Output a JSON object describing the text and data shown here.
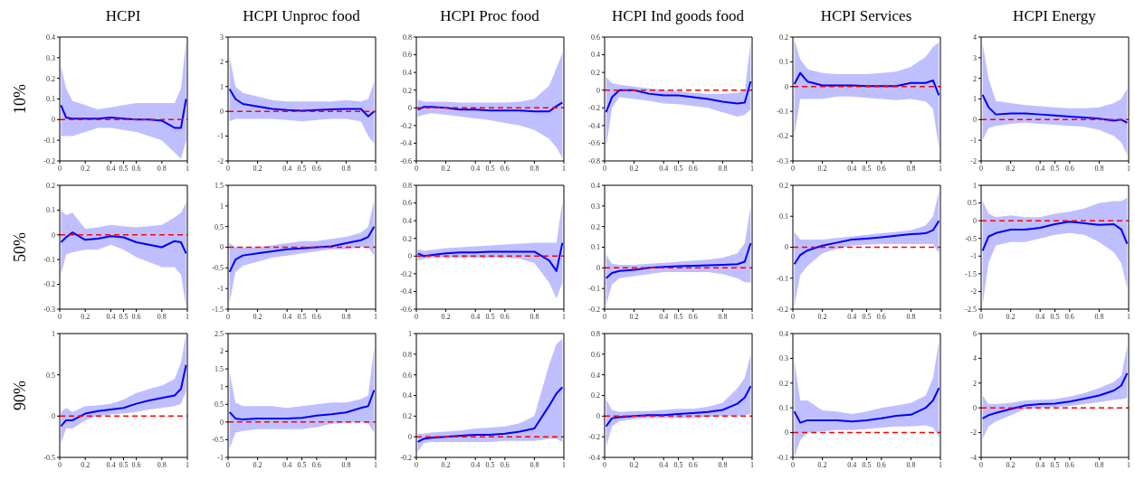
{
  "chart_data": [
    {
      "type": "line",
      "title": "HCPI",
      "ylabel": "10%",
      "x": [
        0.01,
        0.05,
        0.1,
        0.2,
        0.3,
        0.4,
        0.5,
        0.6,
        0.7,
        0.8,
        0.9,
        0.95,
        0.99
      ],
      "xlim": [
        0,
        1
      ],
      "xticks": [
        0,
        0.2,
        0.4,
        0.5,
        0.6,
        0.8,
        1
      ],
      "ylim": [
        -0.2,
        0.4
      ],
      "yticks": [
        -0.2,
        -0.1,
        0,
        0.1,
        0.2,
        0.3,
        0.4
      ],
      "grid": false,
      "legend": false,
      "line_style": "solid",
      "ref_lines": [
        {
          "axis": "y",
          "value": 0,
          "color": "#ff0000",
          "line_style": "dashed"
        }
      ],
      "series": [
        {
          "color": "#0000ff",
          "values": [
            0.07,
            0.01,
            0.005,
            0.005,
            0.005,
            0.01,
            0.005,
            0,
            0,
            -0.005,
            -0.04,
            -0.04,
            0.1
          ],
          "upper": [
            0.26,
            0.15,
            0.09,
            0.07,
            0.05,
            0.06,
            0.07,
            0.08,
            0.08,
            0.08,
            0.08,
            0.15,
            0.38
          ],
          "lower": [
            -0.08,
            -0.08,
            -0.08,
            -0.06,
            -0.04,
            -0.04,
            -0.05,
            -0.06,
            -0.08,
            -0.1,
            -0.16,
            -0.19,
            -0.1
          ]
        }
      ]
    },
    {
      "type": "line",
      "title": "HCPI Unproc food",
      "x": [
        0.01,
        0.05,
        0.1,
        0.2,
        0.3,
        0.4,
        0.5,
        0.6,
        0.7,
        0.8,
        0.9,
        0.95,
        0.99
      ],
      "xlim": [
        0,
        1
      ],
      "xticks": [
        0,
        0.2,
        0.4,
        0.5,
        0.6,
        0.8,
        1
      ],
      "ylim": [
        -2,
        3
      ],
      "yticks": [
        -2,
        -1,
        0,
        1,
        2,
        3
      ],
      "grid": false,
      "legend": false,
      "line_style": "solid",
      "ref_lines": [
        {
          "axis": "y",
          "value": 0,
          "color": "#ff0000",
          "line_style": "dashed"
        }
      ],
      "series": [
        {
          "color": "#0000ff",
          "values": [
            0.9,
            0.5,
            0.3,
            0.2,
            0.1,
            0.05,
            0.03,
            0.05,
            0.08,
            0.1,
            0.1,
            -0.2,
            0
          ],
          "upper": [
            2.2,
            1,
            0.75,
            0.6,
            0.45,
            0.4,
            0.4,
            0.4,
            0.4,
            0.45,
            0.4,
            0.5,
            1.2
          ],
          "lower": [
            -0.4,
            -0.3,
            -0.3,
            -0.3,
            -0.3,
            -0.35,
            -0.4,
            -0.35,
            -0.3,
            -0.3,
            -0.4,
            -1,
            -1.3
          ]
        }
      ]
    },
    {
      "type": "line",
      "title": "HCPI Proc food",
      "x": [
        0.01,
        0.05,
        0.1,
        0.2,
        0.3,
        0.4,
        0.5,
        0.6,
        0.7,
        0.8,
        0.9,
        0.95,
        0.99
      ],
      "xlim": [
        0,
        1
      ],
      "xticks": [
        0,
        0.2,
        0.4,
        0.5,
        0.6,
        0.8,
        1
      ],
      "ylim": [
        -0.6,
        0.8
      ],
      "yticks": [
        -0.6,
        -0.4,
        -0.2,
        0,
        0.2,
        0.4,
        0.6,
        0.8
      ],
      "grid": false,
      "legend": false,
      "line_style": "solid",
      "ref_lines": [
        {
          "axis": "y",
          "value": 0,
          "color": "#ff0000",
          "line_style": "dashed"
        }
      ],
      "series": [
        {
          "color": "#0000ff",
          "values": [
            -0.02,
            0.01,
            0.01,
            0,
            -0.02,
            -0.02,
            -0.03,
            -0.03,
            -0.03,
            -0.04,
            -0.04,
            0.02,
            0.06
          ],
          "upper": [
            0.09,
            0.07,
            0.07,
            0.07,
            0.06,
            0.06,
            0.06,
            0.06,
            0.07,
            0.1,
            0.25,
            0.45,
            0.62
          ],
          "lower": [
            -0.1,
            -0.08,
            -0.06,
            -0.08,
            -0.1,
            -0.12,
            -0.14,
            -0.17,
            -0.2,
            -0.25,
            -0.35,
            -0.45,
            -0.57
          ]
        }
      ]
    },
    {
      "type": "line",
      "title": "HCPI Ind goods food",
      "x": [
        0.01,
        0.05,
        0.1,
        0.2,
        0.3,
        0.4,
        0.5,
        0.6,
        0.7,
        0.8,
        0.9,
        0.95,
        0.99
      ],
      "xlim": [
        0,
        1
      ],
      "xticks": [
        0,
        0.2,
        0.4,
        0.5,
        0.6,
        0.8,
        1
      ],
      "ylim": [
        -0.8,
        0.6
      ],
      "yticks": [
        -0.8,
        -0.6,
        -0.4,
        -0.2,
        0,
        0.2,
        0.4,
        0.6
      ],
      "grid": false,
      "legend": false,
      "line_style": "solid",
      "ref_lines": [
        {
          "axis": "y",
          "value": 0,
          "color": "#ff0000",
          "line_style": "dashed"
        }
      ],
      "series": [
        {
          "color": "#0000ff",
          "values": [
            -0.25,
            -0.08,
            0,
            0,
            -0.04,
            -0.06,
            -0.06,
            -0.08,
            -0.1,
            -0.13,
            -0.15,
            -0.14,
            0.1
          ],
          "upper": [
            0.15,
            0.08,
            0.06,
            0.04,
            0.02,
            0,
            -0.01,
            -0.03,
            -0.04,
            -0.04,
            -0.03,
            0,
            0.55
          ],
          "lower": [
            -0.65,
            -0.2,
            -0.08,
            -0.1,
            -0.12,
            -0.15,
            -0.16,
            -0.18,
            -0.2,
            -0.25,
            -0.3,
            -0.28,
            -0.22
          ]
        }
      ]
    },
    {
      "type": "line",
      "title": "HCPI Services",
      "x": [
        0.01,
        0.05,
        0.1,
        0.2,
        0.3,
        0.4,
        0.5,
        0.6,
        0.7,
        0.8,
        0.9,
        0.95,
        0.99
      ],
      "xlim": [
        0,
        1
      ],
      "xticks": [
        0,
        0.2,
        0.4,
        0.5,
        0.6,
        0.8,
        1
      ],
      "ylim": [
        -0.3,
        0.2
      ],
      "yticks": [
        -0.3,
        -0.2,
        -0.1,
        0,
        0.1,
        0.2
      ],
      "grid": false,
      "legend": false,
      "line_style": "solid",
      "ref_lines": [
        {
          "axis": "y",
          "value": 0,
          "color": "#ff0000",
          "line_style": "dashed"
        }
      ],
      "series": [
        {
          "color": "#0000ff",
          "values": [
            0.01,
            0.055,
            0.02,
            0.005,
            0.005,
            0.005,
            0.002,
            0.002,
            0.002,
            0.015,
            0.015,
            0.025,
            -0.035
          ],
          "upper": [
            0.19,
            0.11,
            0.07,
            0.055,
            0.05,
            0.05,
            0.05,
            0.055,
            0.06,
            0.08,
            0.12,
            0.16,
            0.18
          ],
          "lower": [
            -0.2,
            -0.05,
            -0.05,
            -0.05,
            -0.04,
            -0.04,
            -0.045,
            -0.05,
            -0.055,
            -0.05,
            -0.06,
            -0.09,
            -0.25
          ]
        }
      ]
    },
    {
      "type": "line",
      "title": "HCPI Energy",
      "x": [
        0.01,
        0.05,
        0.1,
        0.2,
        0.3,
        0.4,
        0.5,
        0.6,
        0.7,
        0.8,
        0.9,
        0.95,
        0.99
      ],
      "xlim": [
        0,
        1
      ],
      "xticks": [
        0,
        0.2,
        0.4,
        0.5,
        0.6,
        0.8,
        1
      ],
      "ylim": [
        -2,
        4
      ],
      "yticks": [
        -2,
        -1,
        0,
        1,
        2,
        3,
        4
      ],
      "grid": false,
      "legend": false,
      "line_style": "solid",
      "ref_lines": [
        {
          "axis": "y",
          "value": 0,
          "color": "#ff0000",
          "line_style": "dashed"
        }
      ],
      "series": [
        {
          "color": "#0000ff",
          "values": [
            1.2,
            0.6,
            0.25,
            0.3,
            0.3,
            0.25,
            0.2,
            0.15,
            0.1,
            0.05,
            -0.05,
            0,
            -0.15
          ],
          "upper": [
            3.7,
            2,
            0.9,
            0.8,
            0.7,
            0.65,
            0.6,
            0.55,
            0.55,
            0.6,
            0.8,
            1,
            1.5
          ],
          "lower": [
            -1,
            -0.4,
            -0.3,
            -0.2,
            -0.15,
            -0.2,
            -0.25,
            -0.3,
            -0.35,
            -0.5,
            -0.8,
            -1.1,
            -1.7
          ]
        }
      ]
    },
    {
      "type": "line",
      "ylabel": "50%",
      "x": [
        0.01,
        0.05,
        0.1,
        0.2,
        0.3,
        0.4,
        0.5,
        0.6,
        0.7,
        0.8,
        0.9,
        0.95,
        0.99
      ],
      "xlim": [
        0,
        1
      ],
      "xticks": [
        0,
        0.2,
        0.4,
        0.5,
        0.6,
        0.8,
        1
      ],
      "ylim": [
        -0.3,
        0.2
      ],
      "yticks": [
        -0.3,
        -0.2,
        -0.1,
        0,
        0.1,
        0.2
      ],
      "grid": false,
      "legend": false,
      "line_style": "solid",
      "ref_lines": [
        {
          "axis": "y",
          "value": 0,
          "color": "#ff0000",
          "line_style": "dashed"
        }
      ],
      "series": [
        {
          "color": "#0000ff",
          "values": [
            -0.03,
            -0.01,
            0.01,
            -0.02,
            -0.015,
            -0.005,
            -0.01,
            -0.03,
            -0.04,
            -0.05,
            -0.025,
            -0.03,
            -0.075
          ],
          "upper": [
            0.1,
            0.08,
            0.09,
            0.025,
            0.03,
            0.04,
            0.035,
            0.03,
            0.035,
            0.04,
            0.07,
            0.09,
            0.13
          ],
          "lower": [
            -0.16,
            -0.08,
            -0.07,
            -0.06,
            -0.06,
            -0.04,
            -0.06,
            -0.09,
            -0.11,
            -0.13,
            -0.13,
            -0.16,
            -0.29
          ]
        }
      ]
    },
    {
      "type": "line",
      "x": [
        0.01,
        0.05,
        0.1,
        0.2,
        0.3,
        0.4,
        0.5,
        0.6,
        0.7,
        0.8,
        0.9,
        0.95,
        0.99
      ],
      "xlim": [
        0,
        1
      ],
      "xticks": [
        0,
        0.2,
        0.4,
        0.5,
        0.6,
        0.8,
        1
      ],
      "ylim": [
        -1.5,
        1.5
      ],
      "yticks": [
        -1.5,
        -1,
        -0.5,
        0,
        0.5,
        1,
        1.5
      ],
      "grid": false,
      "legend": false,
      "line_style": "solid",
      "ref_lines": [
        {
          "axis": "y",
          "value": 0,
          "color": "#ff0000",
          "line_style": "dashed"
        }
      ],
      "series": [
        {
          "color": "#0000ff",
          "values": [
            -0.6,
            -0.3,
            -0.2,
            -0.15,
            -0.1,
            -0.05,
            -0.03,
            0,
            0.02,
            0.1,
            0.17,
            0.25,
            0.5
          ],
          "upper": [
            0.1,
            0,
            0,
            0,
            0.05,
            0.1,
            0.15,
            0.15,
            0.2,
            0.25,
            0.35,
            0.5,
            1.15
          ],
          "lower": [
            -1.35,
            -0.6,
            -0.45,
            -0.35,
            -0.25,
            -0.2,
            -0.15,
            -0.1,
            -0.05,
            -0.05,
            0,
            0,
            -0.2
          ]
        }
      ]
    },
    {
      "type": "line",
      "x": [
        0.01,
        0.05,
        0.1,
        0.2,
        0.3,
        0.4,
        0.5,
        0.6,
        0.7,
        0.8,
        0.9,
        0.95,
        0.99
      ],
      "xlim": [
        0,
        1
      ],
      "xticks": [
        0,
        0.2,
        0.4,
        0.5,
        0.6,
        0.8,
        1
      ],
      "ylim": [
        -0.6,
        0.8
      ],
      "yticks": [
        -0.6,
        -0.4,
        -0.2,
        0,
        0.2,
        0.4,
        0.6,
        0.8
      ],
      "grid": false,
      "legend": false,
      "line_style": "solid",
      "ref_lines": [
        {
          "axis": "y",
          "value": 0,
          "color": "#ff0000",
          "line_style": "dashed"
        }
      ],
      "series": [
        {
          "color": "#0000ff",
          "values": [
            0.03,
            0,
            0.01,
            0.03,
            0.04,
            0.04,
            0.05,
            0.05,
            0.05,
            0.05,
            -0.05,
            -0.17,
            0.15
          ],
          "upper": [
            0.08,
            0.06,
            0.07,
            0.09,
            0.1,
            0.11,
            0.12,
            0.13,
            0.14,
            0.15,
            0.15,
            0.15,
            0.62
          ],
          "lower": [
            -0.05,
            -0.03,
            -0.02,
            -0.02,
            -0.02,
            -0.02,
            -0.02,
            -0.02,
            -0.03,
            -0.08,
            -0.3,
            -0.48,
            -0.3
          ]
        }
      ]
    },
    {
      "type": "line",
      "x": [
        0.01,
        0.05,
        0.1,
        0.2,
        0.3,
        0.4,
        0.5,
        0.6,
        0.7,
        0.8,
        0.9,
        0.95,
        0.99
      ],
      "xlim": [
        0,
        1
      ],
      "xticks": [
        0,
        0.2,
        0.4,
        0.5,
        0.6,
        0.8,
        1
      ],
      "ylim": [
        -0.2,
        0.4
      ],
      "yticks": [
        -0.2,
        -0.1,
        0,
        0.1,
        0.2,
        0.3,
        0.4
      ],
      "grid": false,
      "legend": false,
      "line_style": "solid",
      "ref_lines": [
        {
          "axis": "y",
          "value": 0,
          "color": "#ff0000",
          "line_style": "dashed"
        }
      ],
      "series": [
        {
          "color": "#0000ff",
          "values": [
            -0.05,
            -0.025,
            -0.015,
            -0.01,
            0,
            0.005,
            0.008,
            0.01,
            0.012,
            0.015,
            0.018,
            0.03,
            0.12
          ],
          "upper": [
            0.065,
            0.02,
            0.015,
            0.015,
            0.02,
            0.025,
            0.03,
            0.035,
            0.04,
            0.05,
            0.07,
            0.12,
            0.3
          ],
          "lower": [
            -0.18,
            -0.08,
            -0.05,
            -0.04,
            -0.03,
            -0.02,
            -0.02,
            -0.02,
            -0.02,
            -0.03,
            -0.05,
            -0.07,
            -0.07
          ]
        }
      ]
    },
    {
      "type": "line",
      "x": [
        0.01,
        0.05,
        0.1,
        0.2,
        0.3,
        0.4,
        0.5,
        0.6,
        0.7,
        0.8,
        0.9,
        0.95,
        0.99
      ],
      "xlim": [
        0,
        1
      ],
      "xticks": [
        0,
        0.2,
        0.4,
        0.5,
        0.6,
        0.8,
        1
      ],
      "ylim": [
        -0.2,
        0.2
      ],
      "yticks": [
        -0.2,
        -0.1,
        0,
        0.1,
        0.2
      ],
      "grid": false,
      "legend": false,
      "line_style": "solid",
      "ref_lines": [
        {
          "axis": "y",
          "value": 0,
          "color": "#ff0000",
          "line_style": "dashed"
        }
      ],
      "series": [
        {
          "color": "#0000ff",
          "values": [
            -0.055,
            -0.025,
            -0.01,
            0.005,
            0.015,
            0.025,
            0.028,
            0.032,
            0.037,
            0.042,
            0.045,
            0.055,
            0.085
          ],
          "upper": [
            0.05,
            0.025,
            0.025,
            0.025,
            0.03,
            0.035,
            0.04,
            0.045,
            0.05,
            0.055,
            0.07,
            0.1,
            0.18
          ],
          "lower": [
            -0.19,
            -0.09,
            -0.06,
            -0.02,
            -0.005,
            0.005,
            0.008,
            0.01,
            0.01,
            0.01,
            0.01,
            0.01,
            -0.02
          ]
        }
      ]
    },
    {
      "type": "line",
      "x": [
        0.01,
        0.05,
        0.1,
        0.2,
        0.3,
        0.4,
        0.5,
        0.6,
        0.7,
        0.8,
        0.9,
        0.95,
        0.99
      ],
      "xlim": [
        0,
        1
      ],
      "xticks": [
        0,
        0.2,
        0.4,
        0.5,
        0.6,
        0.8,
        1
      ],
      "ylim": [
        -2.5,
        1
      ],
      "yticks": [
        -2.5,
        -2,
        -1.5,
        -1,
        -0.5,
        0,
        0.5,
        1
      ],
      "grid": false,
      "legend": false,
      "line_style": "solid",
      "ref_lines": [
        {
          "axis": "y",
          "value": 0,
          "color": "#ff0000",
          "line_style": "dashed"
        }
      ],
      "series": [
        {
          "color": "#0000ff",
          "values": [
            -0.85,
            -0.45,
            -0.35,
            -0.25,
            -0.25,
            -0.2,
            -0.1,
            -0.03,
            -0.07,
            -0.12,
            -0.1,
            -0.25,
            -0.65
          ],
          "upper": [
            0.55,
            0.2,
            0.1,
            0.15,
            0.1,
            0.1,
            0.2,
            0.25,
            0.35,
            0.5,
            0.55,
            0.55,
            0.65
          ],
          "lower": [
            -2.4,
            -1.2,
            -0.7,
            -0.6,
            -0.6,
            -0.5,
            -0.4,
            -0.35,
            -0.4,
            -0.6,
            -0.9,
            -1.2,
            -1.9
          ]
        }
      ]
    },
    {
      "type": "line",
      "ylabel": "90%",
      "x": [
        0.01,
        0.05,
        0.1,
        0.2,
        0.3,
        0.4,
        0.5,
        0.6,
        0.7,
        0.8,
        0.9,
        0.95,
        0.99
      ],
      "xlim": [
        0,
        1
      ],
      "xticks": [
        0,
        0.2,
        0.4,
        0.5,
        0.6,
        0.8,
        1
      ],
      "ylim": [
        -0.5,
        1
      ],
      "yticks": [
        -0.5,
        0,
        0.5,
        1
      ],
      "grid": false,
      "legend": false,
      "line_style": "solid",
      "ref_lines": [
        {
          "axis": "y",
          "value": 0,
          "color": "#ff0000",
          "line_style": "dashed"
        }
      ],
      "series": [
        {
          "color": "#0000ff",
          "values": [
            -0.12,
            -0.05,
            -0.05,
            0.03,
            0.06,
            0.08,
            0.1,
            0.15,
            0.19,
            0.22,
            0.25,
            0.33,
            0.62
          ],
          "upper": [
            0.05,
            0.1,
            0.05,
            0.12,
            0.13,
            0.15,
            0.2,
            0.28,
            0.33,
            0.37,
            0.45,
            0.65,
            1
          ],
          "lower": [
            -0.33,
            -0.15,
            -0.15,
            -0.05,
            0,
            0.02,
            0.03,
            0.05,
            0.08,
            0.1,
            0.12,
            0.15,
            0.3
          ]
        }
      ]
    },
    {
      "type": "line",
      "x": [
        0.01,
        0.05,
        0.1,
        0.2,
        0.3,
        0.4,
        0.5,
        0.6,
        0.7,
        0.8,
        0.9,
        0.95,
        0.99
      ],
      "xlim": [
        0,
        1
      ],
      "xticks": [
        0,
        0.2,
        0.4,
        0.5,
        0.6,
        0.8,
        1
      ],
      "ylim": [
        -1,
        2.5
      ],
      "yticks": [
        -1,
        -0.5,
        0,
        0.5,
        1,
        1.5,
        2,
        2.5
      ],
      "grid": false,
      "legend": false,
      "line_style": "solid",
      "ref_lines": [
        {
          "axis": "y",
          "value": 0,
          "color": "#ff0000",
          "line_style": "dashed"
        }
      ],
      "series": [
        {
          "color": "#0000ff",
          "values": [
            0.28,
            0.1,
            0.07,
            0.1,
            0.1,
            0.1,
            0.12,
            0.18,
            0.22,
            0.27,
            0.4,
            0.45,
            0.9
          ],
          "upper": [
            1.4,
            0.55,
            0.45,
            0.45,
            0.45,
            0.4,
            0.45,
            0.5,
            0.55,
            0.55,
            0.65,
            0.75,
            2.1
          ],
          "lower": [
            -0.75,
            -0.3,
            -0.25,
            -0.2,
            -0.2,
            -0.2,
            -0.2,
            -0.15,
            -0.05,
            -0.02,
            0,
            -0.05,
            -0.3
          ]
        }
      ]
    },
    {
      "type": "line",
      "x": [
        0.01,
        0.05,
        0.1,
        0.2,
        0.3,
        0.4,
        0.5,
        0.6,
        0.7,
        0.8,
        0.9,
        0.95,
        0.99
      ],
      "xlim": [
        0,
        1
      ],
      "xticks": [
        0,
        0.2,
        0.4,
        0.5,
        0.6,
        0.8,
        1
      ],
      "ylim": [
        -0.2,
        1
      ],
      "yticks": [
        -0.2,
        0,
        0.2,
        0.4,
        0.6,
        0.8,
        1
      ],
      "grid": false,
      "legend": false,
      "line_style": "solid",
      "ref_lines": [
        {
          "axis": "y",
          "value": 0,
          "color": "#ff0000",
          "line_style": "dashed"
        }
      ],
      "series": [
        {
          "color": "#0000ff",
          "values": [
            -0.05,
            -0.02,
            -0.01,
            0,
            0.01,
            0.02,
            0.02,
            0.03,
            0.05,
            0.08,
            0.3,
            0.42,
            0.48
          ],
          "upper": [
            0.03,
            0.03,
            0.04,
            0.05,
            0.06,
            0.08,
            0.09,
            0.1,
            0.13,
            0.2,
            0.7,
            0.9,
            0.95
          ],
          "lower": [
            -0.15,
            -0.06,
            -0.05,
            -0.05,
            -0.05,
            -0.05,
            -0.05,
            -0.04,
            -0.04,
            -0.04,
            -0.02,
            -0.02,
            -0.05
          ]
        }
      ]
    },
    {
      "type": "line",
      "x": [
        0.01,
        0.05,
        0.1,
        0.2,
        0.3,
        0.4,
        0.5,
        0.6,
        0.7,
        0.8,
        0.9,
        0.95,
        0.99
      ],
      "xlim": [
        0,
        1
      ],
      "xticks": [
        0,
        0.2,
        0.4,
        0.5,
        0.6,
        0.8,
        1
      ],
      "ylim": [
        -0.4,
        0.8
      ],
      "yticks": [
        -0.4,
        -0.2,
        0,
        0.2,
        0.4,
        0.6,
        0.8
      ],
      "grid": false,
      "legend": false,
      "line_style": "solid",
      "ref_lines": [
        {
          "axis": "y",
          "value": 0,
          "color": "#ff0000",
          "line_style": "dashed"
        }
      ],
      "series": [
        {
          "color": "#0000ff",
          "values": [
            -0.1,
            -0.02,
            -0.01,
            0,
            0.01,
            0.01,
            0.02,
            0.03,
            0.04,
            0.06,
            0.12,
            0.18,
            0.29
          ],
          "upper": [
            0.16,
            0.06,
            0.04,
            0.05,
            0.05,
            0.06,
            0.07,
            0.07,
            0.09,
            0.13,
            0.27,
            0.37,
            0.6
          ],
          "lower": [
            -0.3,
            -0.1,
            -0.05,
            -0.03,
            -0.02,
            -0.02,
            -0.02,
            -0.02,
            -0.01,
            0,
            0,
            0.01,
            0.02
          ]
        }
      ]
    },
    {
      "type": "line",
      "x": [
        0.01,
        0.05,
        0.1,
        0.2,
        0.3,
        0.4,
        0.5,
        0.6,
        0.7,
        0.8,
        0.9,
        0.95,
        0.99
      ],
      "xlim": [
        0,
        1
      ],
      "xticks": [
        0,
        0.2,
        0.4,
        0.5,
        0.6,
        0.8,
        1
      ],
      "ylim": [
        -0.1,
        0.4
      ],
      "yticks": [
        -0.1,
        0,
        0.1,
        0.2,
        0.3,
        0.4
      ],
      "grid": false,
      "legend": false,
      "line_style": "solid",
      "ref_lines": [
        {
          "axis": "y",
          "value": 0,
          "color": "#ff0000",
          "line_style": "dashed"
        }
      ],
      "series": [
        {
          "color": "#0000ff",
          "values": [
            0.085,
            0.04,
            0.05,
            0.05,
            0.05,
            0.045,
            0.05,
            0.058,
            0.068,
            0.072,
            0.1,
            0.13,
            0.18
          ],
          "upper": [
            0.29,
            0.13,
            0.13,
            0.09,
            0.085,
            0.075,
            0.085,
            0.1,
            0.11,
            0.12,
            0.15,
            0.22,
            0.37
          ],
          "lower": [
            -0.1,
            -0.03,
            0,
            0.005,
            0.01,
            0.01,
            0.015,
            0.02,
            0.025,
            0.025,
            0.03,
            0.02,
            -0.02
          ]
        }
      ]
    },
    {
      "type": "line",
      "x": [
        0.01,
        0.05,
        0.1,
        0.2,
        0.3,
        0.4,
        0.5,
        0.6,
        0.7,
        0.8,
        0.9,
        0.95,
        0.99
      ],
      "xlim": [
        0,
        1
      ],
      "xticks": [
        0,
        0.2,
        0.4,
        0.5,
        0.6,
        0.8,
        1
      ],
      "ylim": [
        -4,
        6
      ],
      "yticks": [
        -4,
        -2,
        0,
        2,
        4,
        6
      ],
      "grid": false,
      "legend": false,
      "line_style": "solid",
      "ref_lines": [
        {
          "axis": "y",
          "value": 0,
          "color": "#ff0000",
          "line_style": "dashed"
        }
      ],
      "series": [
        {
          "color": "#0000ff",
          "values": [
            -0.85,
            -0.6,
            -0.4,
            -0.1,
            0.2,
            0.3,
            0.35,
            0.5,
            0.75,
            1,
            1.4,
            1.8,
            2.8
          ],
          "upper": [
            1,
            0.3,
            0.3,
            0.4,
            0.6,
            0.65,
            0.7,
            0.9,
            1.2,
            1.6,
            2.1,
            2.6,
            5
          ],
          "lower": [
            -2.5,
            -1.5,
            -1.1,
            -0.6,
            -0.1,
            0,
            0.05,
            0.15,
            0.3,
            0.45,
            0.65,
            0.7,
            0.8
          ]
        }
      ]
    }
  ]
}
